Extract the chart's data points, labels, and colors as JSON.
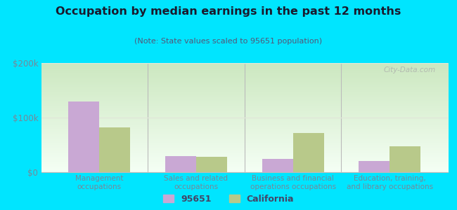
{
  "title": "Occupation by median earnings in the past 12 months",
  "subtitle": "(Note: State values scaled to 95651 population)",
  "categories": [
    "Management\noccupations",
    "Sales and related\noccupations",
    "Business and financial\noperations occupations",
    "Education, training,\nand library occupations"
  ],
  "values_95651": [
    130000,
    30000,
    25000,
    20000
  ],
  "values_california": [
    82000,
    28000,
    72000,
    48000
  ],
  "bar_color_95651": "#c9a8d4",
  "bar_color_california": "#b8c98a",
  "background_outer": "#00e5ff",
  "ylim": [
    0,
    200000
  ],
  "ytick_labels": [
    "$0",
    "$100k",
    "$200k"
  ],
  "legend_label_95651": "95651",
  "legend_label_california": "California",
  "watermark": "City-Data.com",
  "title_color": "#1a1a2e",
  "subtitle_color": "#555577",
  "tick_label_color": "#778899",
  "divider_color": "#bbbbbb",
  "grid_color": "#e0e8d8",
  "gradient_top": "#cce8c0",
  "gradient_bottom": "#f5fff5"
}
